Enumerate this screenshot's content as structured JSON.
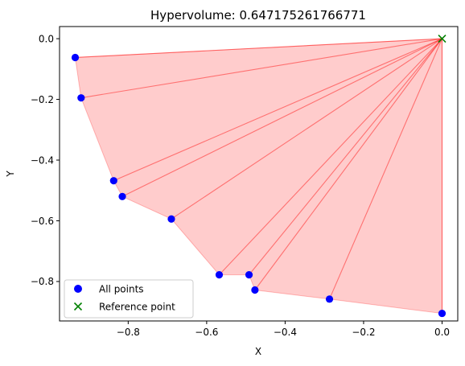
{
  "chart_data": {
    "type": "scatter",
    "title": "Hypervolume: 0.647175261766771",
    "xlabel": "X",
    "ylabel": "Y",
    "xlim": [
      -0.975,
      0.04
    ],
    "ylim": [
      -0.93,
      0.04
    ],
    "grid": false,
    "xticks": [
      -0.8,
      -0.6,
      -0.4,
      -0.2,
      0.0
    ],
    "xtick_labels": [
      "−0.8",
      "−0.6",
      "−0.4",
      "−0.2",
      "0.0"
    ],
    "yticks": [
      0.0,
      -0.2,
      -0.4,
      -0.6,
      -0.8
    ],
    "ytick_labels": [
      "0.0",
      "−0.2",
      "−0.4",
      "−0.6",
      "−0.8"
    ],
    "series": [
      {
        "name": "All points",
        "marker": "circle",
        "color": "#0000ff",
        "points": [
          {
            "x": -0.935,
            "y": -0.062
          },
          {
            "x": -0.92,
            "y": -0.195
          },
          {
            "x": -0.837,
            "y": -0.468
          },
          {
            "x": -0.815,
            "y": -0.52
          },
          {
            "x": -0.69,
            "y": -0.594
          },
          {
            "x": -0.568,
            "y": -0.778
          },
          {
            "x": -0.492,
            "y": -0.778
          },
          {
            "x": -0.477,
            "y": -0.828
          },
          {
            "x": -0.287,
            "y": -0.858
          },
          {
            "x": 0.0,
            "y": -0.905
          }
        ]
      },
      {
        "name": "Reference point",
        "marker": "x",
        "color": "#008000",
        "points": [
          {
            "x": 0.0,
            "y": 0.0
          }
        ]
      }
    ],
    "hull_polygon": [
      [
        0.0,
        0.0
      ],
      [
        -0.935,
        -0.062
      ],
      [
        -0.92,
        -0.195
      ],
      [
        -0.837,
        -0.468
      ],
      [
        -0.815,
        -0.52
      ],
      [
        -0.69,
        -0.594
      ],
      [
        -0.568,
        -0.778
      ],
      [
        -0.492,
        -0.778
      ],
      [
        -0.477,
        -0.828
      ],
      [
        -0.287,
        -0.858
      ],
      [
        0.0,
        -0.905
      ]
    ],
    "fill_color": "#ff0000",
    "fill_opacity": 0.2,
    "ray_color": "#ff0000",
    "legend": {
      "position": "lower-left",
      "entries": [
        "All points",
        "Reference point"
      ]
    }
  }
}
